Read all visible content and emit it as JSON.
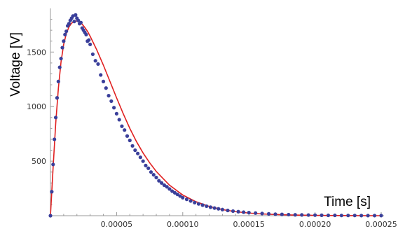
{
  "chart_data": {
    "type": "scatter",
    "title": "",
    "xlabel": "Time [s]",
    "ylabel": "Voltage [V]",
    "xlim": [
      0,
      0.00025
    ],
    "ylim": [
      0,
      1900
    ],
    "grid": false,
    "x_ticks": [
      {
        "value": 5e-05,
        "label": "0.00005"
      },
      {
        "value": 0.0001,
        "label": "0.00010"
      },
      {
        "value": 0.00015,
        "label": "0.00015"
      },
      {
        "value": 0.0002,
        "label": "0.00020"
      },
      {
        "value": 0.00025,
        "label": "0.00025"
      }
    ],
    "y_ticks": [
      {
        "value": 500,
        "label": "500"
      },
      {
        "value": 1000,
        "label": "1000"
      },
      {
        "value": 1500,
        "label": "1500"
      }
    ],
    "colors": {
      "measured": "#3a3f9a",
      "fit": "#e02020"
    },
    "series": [
      {
        "kind": "points",
        "x": [
          0,
          1e-06,
          2e-06,
          3e-06,
          4e-06,
          5e-06,
          6e-06,
          7e-06,
          8e-06,
          9e-06,
          1e-05,
          1.1e-05,
          1.2e-05,
          1.3e-05,
          1.4e-05,
          1.5e-05,
          1.6e-05,
          1.7e-05,
          1.8e-05,
          1.9e-05,
          2e-05,
          2.1e-05,
          2.2e-05,
          2.3e-05,
          2.4e-05,
          2.5e-05,
          2.6e-05,
          2.7e-05,
          2.8e-05,
          2.9e-05,
          3e-05,
          3.2e-05,
          3.4e-05,
          3.6e-05,
          3.8e-05,
          4e-05,
          4.2e-05,
          4.4e-05,
          4.6e-05,
          4.8e-05,
          5e-05,
          5.2e-05,
          5.4e-05,
          5.6e-05,
          5.8e-05,
          6e-05,
          6.2e-05,
          6.4e-05,
          6.6e-05,
          6.8e-05,
          7e-05,
          7.2e-05,
          7.4e-05,
          7.6e-05,
          7.8e-05,
          8e-05,
          8.2e-05,
          8.4e-05,
          8.6e-05,
          8.8e-05,
          9e-05,
          9.2e-05,
          9.4e-05,
          9.6e-05,
          9.8e-05,
          0.0001,
          0.000103,
          0.000106,
          0.000109,
          0.000112,
          0.000115,
          0.000118,
          0.000121,
          0.000124,
          0.000127,
          0.00013,
          0.000134,
          0.000138,
          0.000142,
          0.000146,
          0.00015,
          0.000155,
          0.00016,
          0.000165,
          0.00017,
          0.000175,
          0.00018,
          0.000185,
          0.00019,
          0.000195,
          0.0002,
          0.000205,
          0.00021,
          0.000215,
          0.00022,
          0.000225,
          0.00023,
          0.000235,
          0.00024,
          0.000245,
          0.00025
        ],
        "y": [
          0,
          220,
          470,
          700,
          900,
          1080,
          1230,
          1360,
          1440,
          1540,
          1600,
          1660,
          1690,
          1740,
          1760,
          1790,
          1810,
          1830,
          1780,
          1840,
          1810,
          1790,
          1760,
          1770,
          1720,
          1700,
          1680,
          1660,
          1600,
          1610,
          1570,
          1480,
          1420,
          1390,
          1290,
          1230,
          1170,
          1100,
          1050,
          990,
          935,
          880,
          820,
          785,
          730,
          690,
          640,
          600,
          570,
          535,
          500,
          460,
          435,
          400,
          375,
          350,
          320,
          300,
          280,
          265,
          245,
          225,
          210,
          195,
          180,
          165,
          150,
          135,
          120,
          108,
          97,
          87,
          78,
          70,
          63,
          56,
          48,
          42,
          37,
          32,
          28,
          24,
          20,
          17,
          14,
          12,
          10,
          8,
          7,
          6,
          5,
          4,
          3,
          3,
          2,
          2,
          2,
          1,
          1,
          1,
          1
        ]
      },
      {
        "kind": "fit",
        "x": [
          0,
          2e-06,
          4e-06,
          6e-06,
          8e-06,
          1e-05,
          1.2e-05,
          1.4e-05,
          1.6e-05,
          1.8e-05,
          2e-05,
          2.2e-05,
          2.4e-05,
          2.6e-05,
          2.8e-05,
          3e-05,
          3.5e-05,
          4e-05,
          4.5e-05,
          5e-05,
          5.5e-05,
          6e-05,
          6.5e-05,
          7e-05,
          7.5e-05,
          8e-05,
          9e-05,
          0.0001,
          0.00011,
          0.00012,
          0.00013,
          0.00014,
          0.00015,
          0.00016,
          0.00018,
          0.0002,
          0.00022,
          0.00025
        ],
        "y": [
          0,
          440,
          850,
          1170,
          1410,
          1570,
          1670,
          1730,
          1765,
          1780,
          1785,
          1775,
          1755,
          1725,
          1690,
          1645,
          1520,
          1380,
          1230,
          1080,
          935,
          800,
          680,
          575,
          485,
          405,
          280,
          190,
          128,
          85,
          56,
          37,
          24,
          16,
          7,
          3,
          1,
          0
        ]
      }
    ]
  }
}
